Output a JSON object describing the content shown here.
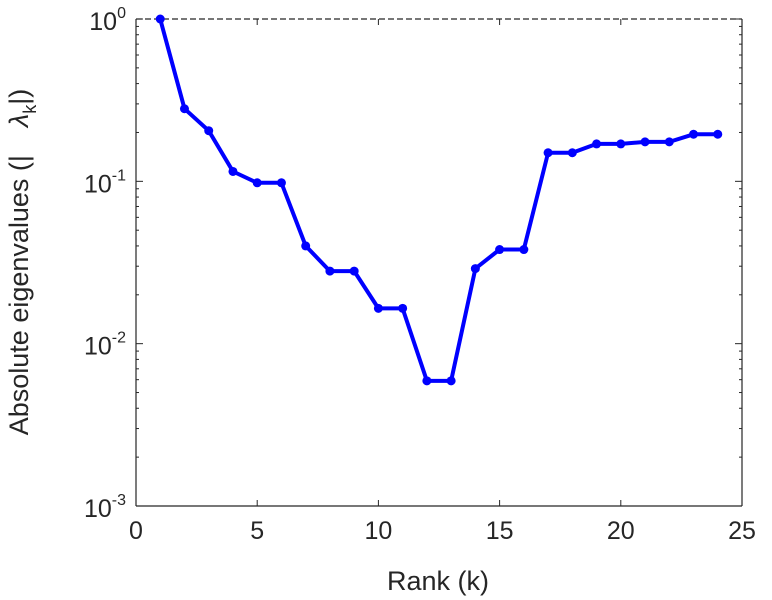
{
  "chart_data": {
    "type": "line",
    "xlabel": "Rank (k)",
    "ylabel": "Absolute eigenvalues (|",
    "ylabel_symbol": "λ",
    "ylabel_subscript": "k",
    "ylabel_close": "|)",
    "x_scale": "linear",
    "y_scale": "log",
    "xlim": [
      0,
      25
    ],
    "ylim": [
      0.001,
      1
    ],
    "x_ticks": [
      {
        "value": 0,
        "label": "0"
      },
      {
        "value": 5,
        "label": "5"
      },
      {
        "value": 10,
        "label": "10"
      },
      {
        "value": 15,
        "label": "15"
      },
      {
        "value": 20,
        "label": "20"
      },
      {
        "value": 25,
        "label": "25"
      }
    ],
    "y_ticks": [
      {
        "value": 1,
        "base": "10",
        "exp": "0"
      },
      {
        "value": 0.1,
        "base": "10",
        "exp": "-1"
      },
      {
        "value": 0.01,
        "base": "10",
        "exp": "-2"
      },
      {
        "value": 0.001,
        "base": "10",
        "exp": "-3"
      }
    ],
    "grid": false,
    "series": [
      {
        "color": "#0000ff",
        "marker": "circle",
        "x": [
          1,
          2,
          3,
          4,
          5,
          6,
          7,
          8,
          9,
          10,
          11,
          12,
          13,
          14,
          15,
          16,
          17,
          18,
          19,
          20,
          21,
          22,
          23,
          24
        ],
        "y": [
          1.0,
          0.28,
          0.205,
          0.115,
          0.098,
          0.098,
          0.04,
          0.028,
          0.028,
          0.0165,
          0.0165,
          0.0059,
          0.0059,
          0.029,
          0.038,
          0.038,
          0.15,
          0.15,
          0.17,
          0.17,
          0.175,
          0.175,
          0.195,
          0.195
        ]
      }
    ]
  }
}
